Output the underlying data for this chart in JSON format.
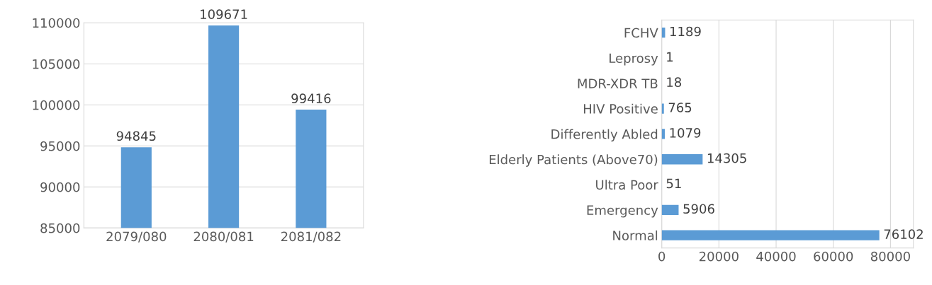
{
  "chart_data": [
    {
      "type": "bar",
      "categories": [
        "2079/080",
        "2080/081",
        "2081/082"
      ],
      "values": [
        94845,
        109671,
        99416
      ],
      "color": "#5b9bd5",
      "ylim": [
        85000,
        110000
      ],
      "yticks": [
        85000,
        90000,
        95000,
        100000,
        105000,
        110000
      ],
      "grid": "y",
      "data_labels": true
    },
    {
      "type": "bar",
      "orientation": "horizontal",
      "categories": [
        "FCHV",
        "Leprosy",
        "MDR-XDR TB",
        "HIV Positive",
        "Differently Abled",
        "Elderly Patients (Above70)",
        "Ultra Poor",
        "Emergency",
        "Normal"
      ],
      "values": [
        1189,
        1,
        18,
        765,
        1079,
        14305,
        51,
        5906,
        76102
      ],
      "color": "#5b9bd5",
      "xlim": [
        0,
        88000
      ],
      "xticks": [
        0,
        20000,
        40000,
        60000,
        80000
      ],
      "grid": "x",
      "data_labels": true
    }
  ]
}
